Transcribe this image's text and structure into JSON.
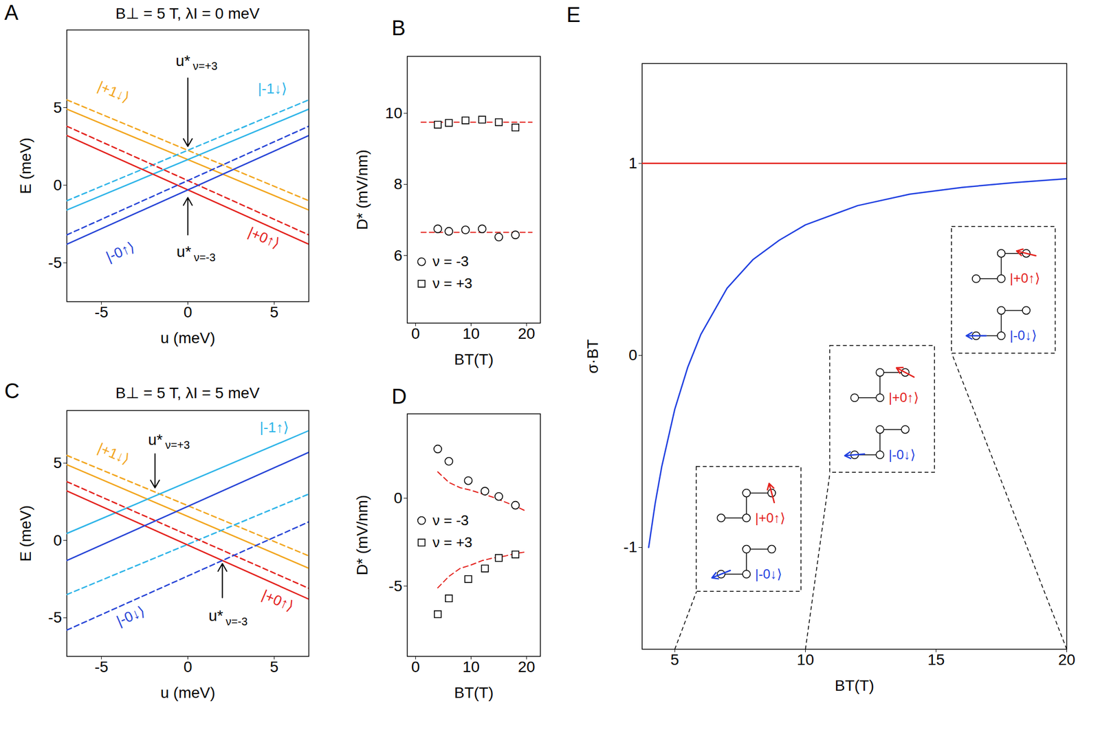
{
  "chart_data": [
    {
      "panel": "A",
      "type": "line",
      "title": "B⊥ = 5 T, λI = 0 meV",
      "x_label": "u (meV)",
      "y_label": "E (meV)",
      "xlim": [
        -7,
        7
      ],
      "ylim": [
        -7.5,
        10
      ],
      "xticks": [
        -5,
        0,
        5
      ],
      "yticks": [
        -5,
        0,
        5
      ],
      "series": [
        {
          "color": "#f2a51c",
          "line_style": "dashed",
          "x": [
            -7,
            7
          ],
          "values": [
            5.5,
            -1.0
          ]
        },
        {
          "color": "#f2a51c",
          "line_style": "solid",
          "x": [
            -7,
            7
          ],
          "values": [
            4.9,
            -1.6
          ]
        },
        {
          "color": "#2db4e8",
          "line_style": "dashed",
          "x": [
            -7,
            7
          ],
          "values": [
            -1.0,
            5.5
          ]
        },
        {
          "color": "#2db4e8",
          "line_style": "solid",
          "x": [
            -7,
            7
          ],
          "values": [
            -1.6,
            4.9
          ]
        },
        {
          "color": "#e3201b",
          "line_style": "dashed",
          "x": [
            -7,
            7
          ],
          "values": [
            3.8,
            -3.2
          ]
        },
        {
          "color": "#e3201b",
          "line_style": "solid",
          "x": [
            -7,
            7
          ],
          "values": [
            3.2,
            -3.8
          ]
        },
        {
          "color": "#2543d6",
          "line_style": "dashed",
          "x": [
            -7,
            7
          ],
          "values": [
            -3.2,
            3.8
          ]
        },
        {
          "color": "#2543d6",
          "line_style": "solid",
          "x": [
            -7,
            7
          ],
          "values": [
            -3.8,
            3.2
          ]
        }
      ],
      "annotations": [
        {
          "text": "|+1↓⟩",
          "color": "#f2a51c",
          "x": -4.3,
          "y": 6.0
        },
        {
          "text": "|-1↓⟩",
          "color": "#2db4e8",
          "x": 4.9,
          "y": 6.2
        },
        {
          "text": "|-0↑⟩",
          "color": "#2543d6",
          "x": -3.9,
          "y": -4.3
        },
        {
          "text": "|+0↑⟩",
          "color": "#e3201b",
          "x": 4.4,
          "y": -3.4
        }
      ],
      "arrows": [
        {
          "text": "u*",
          "sub": "ν=+3",
          "x": -0.7,
          "y": 8.0,
          "arrow_x": 0,
          "arrow_from": 6.9,
          "arrow_to": 2.5
        },
        {
          "text": "u*",
          "sub": "ν=-3",
          "x": -0.65,
          "y": -4.3,
          "arrow_x": 0,
          "arrow_from": -3.2,
          "arrow_to": -0.8
        }
      ]
    },
    {
      "panel": "B",
      "type": "scatter",
      "x_label": "BT(T)",
      "y_label": "D* (mV/nm)",
      "xlim": [
        -1.5,
        22.5
      ],
      "ylim": [
        4.1,
        11.6
      ],
      "xticks": [
        0,
        10,
        20
      ],
      "yticks": [
        6,
        8,
        10
      ],
      "legend": "bottom-left",
      "series": [
        {
          "name": "ν = -3",
          "marker": "circle",
          "color": "#000000",
          "x": [
            4,
            6,
            9,
            12,
            15,
            18
          ],
          "values": [
            6.75,
            6.68,
            6.72,
            6.75,
            6.52,
            6.58
          ]
        },
        {
          "name": "ν = +3",
          "marker": "square",
          "color": "#000000",
          "x": [
            4,
            6,
            9,
            12,
            15,
            18
          ],
          "values": [
            9.68,
            9.73,
            9.8,
            9.82,
            9.75,
            9.6
          ]
        }
      ],
      "fits": [
        {
          "color": "#e3201b",
          "line_style": "dashed",
          "x": [
            1,
            21
          ],
          "values": [
            6.65,
            6.65
          ]
        },
        {
          "color": "#e3201b",
          "line_style": "dashed",
          "x": [
            1,
            21
          ],
          "values": [
            9.75,
            9.75
          ]
        }
      ]
    },
    {
      "panel": "C",
      "type": "line",
      "title": "B⊥ = 5 T, λI = 5 meV",
      "x_label": "u (meV)",
      "y_label": "E (meV)",
      "xlim": [
        -7,
        7
      ],
      "ylim": [
        -7.5,
        8.4
      ],
      "xticks": [
        -5,
        0,
        5
      ],
      "yticks": [
        -5,
        0,
        5
      ],
      "series": [
        {
          "color": "#f2a51c",
          "line_style": "dashed",
          "x": [
            -7,
            7
          ],
          "values": [
            5.5,
            -1.0
          ]
        },
        {
          "color": "#f2a51c",
          "line_style": "solid",
          "x": [
            -7,
            7
          ],
          "values": [
            4.9,
            -1.8
          ]
        },
        {
          "color": "#2db4e8",
          "line_style": "dashed",
          "x": [
            -7,
            7
          ],
          "values": [
            -3.5,
            3.0
          ]
        },
        {
          "color": "#2db4e8",
          "line_style": "solid",
          "x": [
            -7,
            7
          ],
          "values": [
            0.45,
            7.1
          ]
        },
        {
          "color": "#e3201b",
          "line_style": "dashed",
          "x": [
            -7,
            7
          ],
          "values": [
            3.8,
            -3.1
          ]
        },
        {
          "color": "#e3201b",
          "line_style": "solid",
          "x": [
            -7,
            7
          ],
          "values": [
            3.2,
            -3.8
          ]
        },
        {
          "color": "#2543d6",
          "line_style": "dashed",
          "x": [
            -7,
            7
          ],
          "values": [
            -5.8,
            1.2
          ]
        },
        {
          "color": "#2543d6",
          "line_style": "solid",
          "x": [
            -7,
            7
          ],
          "values": [
            -1.3,
            5.7
          ]
        }
      ],
      "annotations": [
        {
          "text": "|+1↓⟩",
          "color": "#f2a51c",
          "x": -4.3,
          "y": 5.6
        },
        {
          "text": "|-1↑⟩",
          "color": "#2db4e8",
          "x": 5.0,
          "y": 7.3
        },
        {
          "text": "|-0↓⟩",
          "color": "#2543d6",
          "x": -3.3,
          "y": -4.9
        },
        {
          "text": "|+0↑⟩",
          "color": "#e3201b",
          "x": 5.2,
          "y": -3.9
        }
      ],
      "arrows": [
        {
          "text": "u*",
          "sub": "ν=+3",
          "x": -2.3,
          "y": 6.5,
          "arrow_x": -1.9,
          "arrow_from": 5.6,
          "arrow_to": 3.4
        },
        {
          "text": "u*",
          "sub": "ν=-3",
          "x": 1.2,
          "y": -4.9,
          "arrow_x": 2.0,
          "arrow_from": -3.7,
          "arrow_to": -1.5
        }
      ]
    },
    {
      "panel": "D",
      "type": "scatter",
      "x_label": "BT(T)",
      "y_label": "D* (mV/nm)",
      "xlim": [
        -1.5,
        22.5
      ],
      "ylim": [
        -9,
        4.8
      ],
      "xticks": [
        0,
        10,
        20
      ],
      "yticks": [
        -5,
        0
      ],
      "legend": "center-left",
      "series": [
        {
          "name": "ν = -3",
          "marker": "circle",
          "color": "#000000",
          "x": [
            4,
            6,
            9.5,
            12.5,
            15,
            18
          ],
          "values": [
            2.8,
            2.1,
            1.0,
            0.4,
            0.1,
            -0.4
          ]
        },
        {
          "name": "ν = +3",
          "marker": "square",
          "color": "#000000",
          "x": [
            4,
            6,
            9.5,
            12.5,
            15,
            18
          ],
          "values": [
            -6.6,
            -5.7,
            -4.6,
            -4.0,
            -3.4,
            -3.2
          ]
        }
      ],
      "fits": [
        {
          "color": "#e3201b",
          "line_style": "dashed",
          "x": [
            4,
            6,
            8,
            10,
            12,
            14,
            16,
            18,
            20
          ],
          "values": [
            1.5,
            0.9,
            0.6,
            0.45,
            0.25,
            0.05,
            -0.2,
            -0.45,
            -0.75
          ]
        },
        {
          "color": "#e3201b",
          "line_style": "dashed",
          "x": [
            4,
            6,
            8,
            10,
            12,
            14,
            16,
            18,
            20
          ],
          "values": [
            -5.1,
            -4.45,
            -4.0,
            -3.8,
            -3.55,
            -3.4,
            -3.3,
            -3.15,
            -3.05
          ]
        }
      ]
    },
    {
      "panel": "E",
      "type": "line",
      "x_label": "BT(T)",
      "y_label": "σ·BT",
      "xlim": [
        3.75,
        20
      ],
      "ylim": [
        -1.53,
        1.52
      ],
      "xticks": [
        5,
        10,
        15,
        20
      ],
      "yticks": [
        -1,
        0,
        1
      ],
      "series": [
        {
          "color": "#e3201b",
          "line_style": "solid",
          "x": [
            3.75,
            20
          ],
          "values": [
            1,
            1
          ]
        },
        {
          "color": "#1f3fe0",
          "line_style": "solid",
          "x": [
            4,
            4.25,
            4.5,
            5,
            5.5,
            6,
            7,
            8,
            9,
            10,
            12,
            14,
            16,
            18,
            20
          ],
          "values": [
            -1.0,
            -0.77,
            -0.58,
            -0.28,
            -0.06,
            0.11,
            0.35,
            0.5,
            0.6,
            0.68,
            0.78,
            0.84,
            0.875,
            0.9,
            0.92
          ]
        }
      ],
      "insets": [
        {
          "B_T": 5,
          "states": [
            {
              "label": "|+0↑⟩",
              "color": "#e3201b",
              "spin_direction_deg": 105
            },
            {
              "label": "|-0↓⟩",
              "color": "#1f3fe0",
              "spin_direction_deg": 202
            }
          ]
        },
        {
          "B_T": 10,
          "states": [
            {
              "label": "|+0↑⟩",
              "color": "#e3201b",
              "spin_direction_deg": 152
            },
            {
              "label": "|-0↓⟩",
              "color": "#1f3fe0",
              "spin_direction_deg": 185
            }
          ]
        },
        {
          "B_T": 20,
          "states": [
            {
              "label": "|+0↑⟩",
              "color": "#e3201b",
              "spin_direction_deg": 166
            },
            {
              "label": "|-0↓⟩",
              "color": "#1f3fe0",
              "spin_direction_deg": 180
            }
          ]
        }
      ]
    }
  ]
}
